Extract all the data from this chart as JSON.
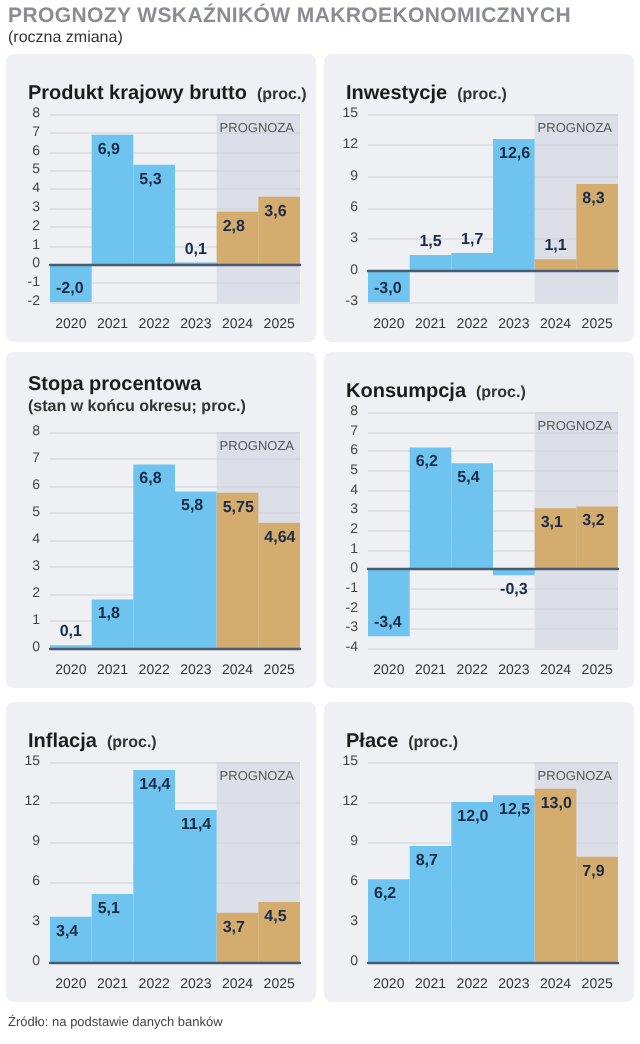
{
  "chart_data": [
    {
      "type": "other",
      "title": "PROGNOZY WSKAŹNIKÓW MAKROEKONOMICZNYCH",
      "subtitle": "(roczna zmiana)",
      "annotations": [
        "Źródło: na podstawie danych banków"
      ]
    },
    {
      "type": "bar",
      "title": "Produkt krajowy brutto",
      "subtitle": "(proc.)",
      "categories": [
        "2020",
        "2021",
        "2022",
        "2023",
        "2024",
        "2025"
      ],
      "values": [
        -2.0,
        6.9,
        5.3,
        0.1,
        2.8,
        3.6
      ],
      "colors": [
        "#6ec4ee",
        "#6ec4ee",
        "#6ec4ee",
        "#6ec4ee",
        "#d4ac6e",
        "#d4ac6e"
      ],
      "value_labels": [
        "-2,0",
        "6,9",
        "5,3",
        "0,1",
        "2,8",
        "3,6"
      ],
      "ylim": [
        -2,
        8
      ],
      "yticks": [
        -2,
        -1,
        0,
        1,
        2,
        3,
        4,
        5,
        6,
        7,
        8
      ],
      "grid": "y",
      "bands": [
        {
          "axis": "x",
          "from": "2024",
          "to": "2025",
          "label": "PROGNOZA",
          "color": "#dcdfe8"
        }
      ]
    },
    {
      "type": "bar",
      "title": "Inwestycje",
      "subtitle": "(proc.)",
      "categories": [
        "2020",
        "2021",
        "2022",
        "2023",
        "2024",
        "2025"
      ],
      "values": [
        -3.0,
        1.5,
        1.7,
        12.6,
        1.1,
        8.3
      ],
      "colors": [
        "#6ec4ee",
        "#6ec4ee",
        "#6ec4ee",
        "#6ec4ee",
        "#d4ac6e",
        "#d4ac6e"
      ],
      "value_labels": [
        "-3,0",
        "1,5",
        "1,7",
        "12,6",
        "1,1",
        "8,3"
      ],
      "ylim": [
        -3,
        15
      ],
      "yticks": [
        -3,
        0,
        3,
        6,
        9,
        12,
        15
      ],
      "grid": "y",
      "bands": [
        {
          "axis": "x",
          "from": "2024",
          "to": "2025",
          "label": "PROGNOZA",
          "color": "#dcdfe8"
        }
      ]
    },
    {
      "type": "bar",
      "title": "Stopa procentowa",
      "subtitle": "(stan w końcu okresu; proc.)",
      "categories": [
        "2020",
        "2021",
        "2022",
        "2023",
        "2024",
        "2025"
      ],
      "values": [
        0.1,
        1.8,
        6.8,
        5.8,
        5.75,
        4.64
      ],
      "colors": [
        "#6ec4ee",
        "#6ec4ee",
        "#6ec4ee",
        "#6ec4ee",
        "#d4ac6e",
        "#d4ac6e"
      ],
      "value_labels": [
        "0,1",
        "1,8",
        "6,8",
        "5,8",
        "5,75",
        "4,64"
      ],
      "ylim": [
        0,
        8
      ],
      "yticks": [
        0,
        1,
        2,
        3,
        4,
        5,
        6,
        7,
        8
      ],
      "grid": "y",
      "bands": [
        {
          "axis": "x",
          "from": "2024",
          "to": "2025",
          "label": "PROGNOZA",
          "color": "#dcdfe8"
        }
      ]
    },
    {
      "type": "bar",
      "title": "Konsumpcja",
      "subtitle": "(proc.)",
      "categories": [
        "2020",
        "2021",
        "2022",
        "2023",
        "2024",
        "2025"
      ],
      "values": [
        -3.4,
        6.2,
        5.4,
        -0.3,
        3.1,
        3.2
      ],
      "colors": [
        "#6ec4ee",
        "#6ec4ee",
        "#6ec4ee",
        "#6ec4ee",
        "#d4ac6e",
        "#d4ac6e"
      ],
      "value_labels": [
        "-3,4",
        "6,2",
        "5,4",
        "-0,3",
        "3,1",
        "3,2"
      ],
      "ylim": [
        -4,
        8
      ],
      "yticks": [
        -4,
        -3,
        -2,
        -1,
        0,
        1,
        2,
        3,
        4,
        5,
        6,
        7,
        8
      ],
      "grid": "y",
      "bands": [
        {
          "axis": "x",
          "from": "2024",
          "to": "2025",
          "label": "PROGNOZA",
          "color": "#dcdfe8"
        }
      ]
    },
    {
      "type": "bar",
      "title": "Inflacja",
      "subtitle": "(proc.)",
      "categories": [
        "2020",
        "2021",
        "2022",
        "2023",
        "2024",
        "2025"
      ],
      "values": [
        3.4,
        5.1,
        14.4,
        11.4,
        3.7,
        4.5
      ],
      "colors": [
        "#6ec4ee",
        "#6ec4ee",
        "#6ec4ee",
        "#6ec4ee",
        "#d4ac6e",
        "#d4ac6e"
      ],
      "value_labels": [
        "3,4",
        "5,1",
        "14,4",
        "11,4",
        "3,7",
        "4,5"
      ],
      "ylim": [
        0,
        15
      ],
      "yticks": [
        0,
        3,
        6,
        9,
        12,
        15
      ],
      "grid": "y",
      "bands": [
        {
          "axis": "x",
          "from": "2024",
          "to": "2025",
          "label": "PROGNOZA",
          "color": "#dcdfe8"
        }
      ]
    },
    {
      "type": "bar",
      "title": "Płace",
      "subtitle": "(proc.)",
      "categories": [
        "2020",
        "2021",
        "2022",
        "2023",
        "2024",
        "2025"
      ],
      "values": [
        6.2,
        8.7,
        12.0,
        12.5,
        13.0,
        7.9
      ],
      "colors": [
        "#6ec4ee",
        "#6ec4ee",
        "#6ec4ee",
        "#6ec4ee",
        "#d4ac6e",
        "#d4ac6e"
      ],
      "value_labels": [
        "6,2",
        "8,7",
        "12,0",
        "12,5",
        "13,0",
        "7,9"
      ],
      "ylim": [
        0,
        15
      ],
      "yticks": [
        0,
        3,
        6,
        9,
        12,
        15
      ],
      "grid": "y",
      "bands": [
        {
          "axis": "x",
          "from": "2024",
          "to": "2025",
          "label": "PROGNOZA",
          "color": "#dcdfe8"
        }
      ]
    }
  ]
}
